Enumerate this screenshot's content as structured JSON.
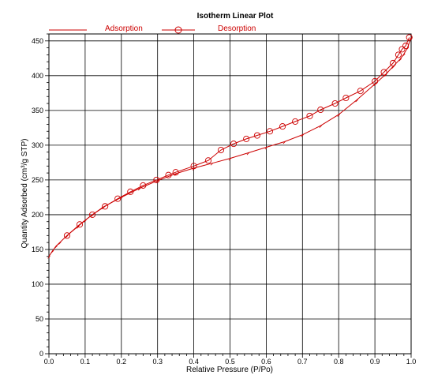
{
  "chart_data": {
    "type": "line",
    "title": "Isotherm Linear Plot",
    "xlabel": "Relative Pressure (P/Po)",
    "ylabel": "Quantity Adsorbed (cm³/g STP)",
    "xlim": [
      0.0,
      1.0
    ],
    "ylim": [
      0,
      460
    ],
    "x_ticks": [
      "0.0",
      "0.1",
      "0.2",
      "0.3",
      "0.4",
      "0.5",
      "0.6",
      "0.7",
      "0.8",
      "0.9",
      "1.0"
    ],
    "y_ticks": [
      "0",
      "50",
      "100",
      "150",
      "200",
      "250",
      "300",
      "350",
      "400",
      "450"
    ],
    "grid": true,
    "legend_position": "top",
    "series": [
      {
        "name": "Adsorption",
        "color": "#cc0000",
        "marker": "none",
        "x": [
          0.0,
          0.01,
          0.02,
          0.03,
          0.05,
          0.08,
          0.1,
          0.12,
          0.15,
          0.2,
          0.25,
          0.3,
          0.35,
          0.4,
          0.45,
          0.5,
          0.55,
          0.6,
          0.65,
          0.7,
          0.75,
          0.8,
          0.85,
          0.9,
          0.93,
          0.95,
          0.97,
          0.98,
          0.99,
          1.0
        ],
        "y": [
          140,
          148,
          155,
          160,
          170,
          183,
          192,
          200,
          211,
          225,
          238,
          249,
          259,
          267,
          274,
          281,
          289,
          297,
          305,
          315,
          328,
          344,
          365,
          388,
          402,
          413,
          424,
          431,
          440,
          455
        ]
      },
      {
        "name": "Desorption",
        "color": "#cc0000",
        "marker": "circle",
        "x": [
          0.05,
          0.085,
          0.12,
          0.155,
          0.19,
          0.225,
          0.26,
          0.297,
          0.33,
          0.35,
          0.4,
          0.44,
          0.475,
          0.51,
          0.545,
          0.575,
          0.61,
          0.645,
          0.68,
          0.72,
          0.75,
          0.79,
          0.82,
          0.86,
          0.9,
          0.925,
          0.95,
          0.965,
          0.975,
          0.985,
          0.995
        ],
        "y": [
          170,
          186,
          200,
          212,
          223,
          233,
          242,
          250,
          257,
          261,
          270,
          278,
          293,
          302,
          309,
          314,
          320,
          327,
          334,
          342,
          351,
          360,
          368,
          378,
          392,
          405,
          418,
          430,
          438,
          443,
          455
        ]
      }
    ]
  }
}
